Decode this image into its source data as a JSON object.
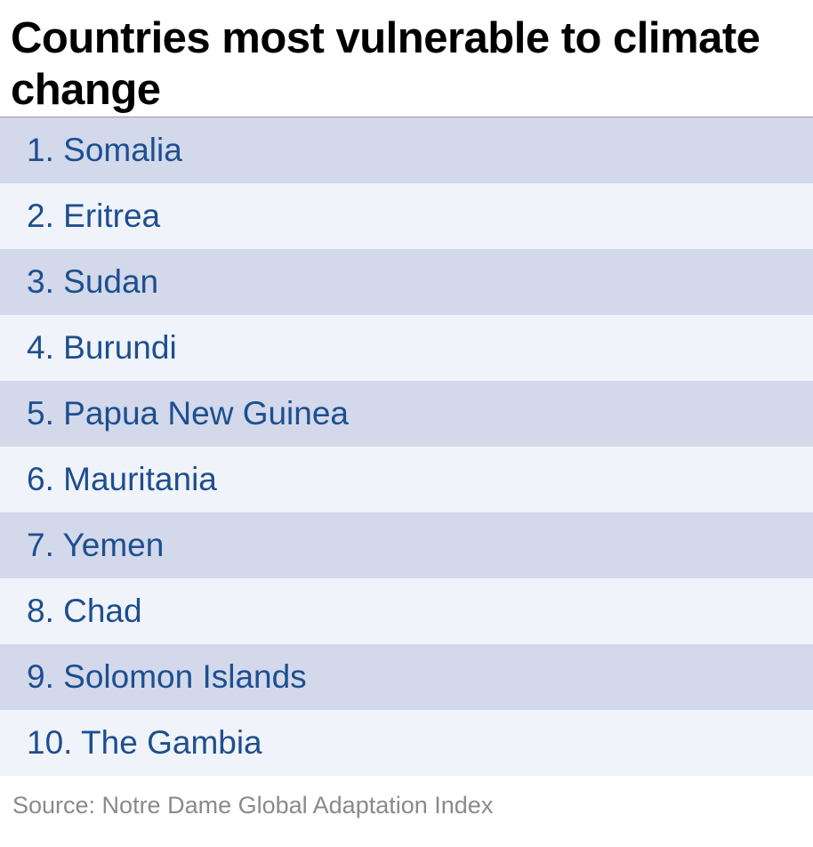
{
  "header": {
    "title": "Countries most vulnerable to climate change"
  },
  "table": {
    "rows": [
      "1. Somalia",
      "2. Eritrea",
      "3. Sudan",
      "4. Burundi",
      "5. Papua New Guinea",
      "6. Mauritania",
      "7. Yemen",
      "8. Chad",
      "9. Solomon Islands",
      "10. The Gambia"
    ]
  },
  "footer": {
    "source": "Source: Notre Dame Global Adaptation Index"
  }
}
